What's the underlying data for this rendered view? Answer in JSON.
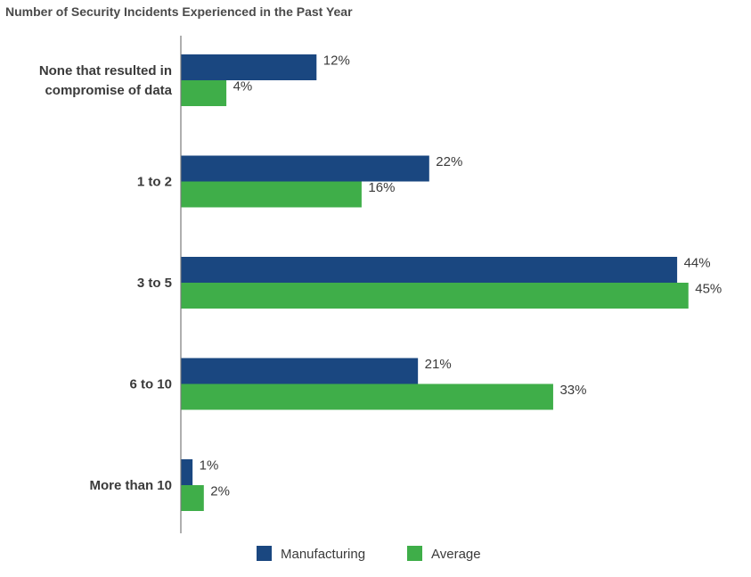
{
  "chart_data": {
    "type": "bar",
    "orientation": "horizontal",
    "title": "Number of Security Incidents Experienced in the Past Year",
    "categories": [
      [
        "None that resulted in",
        "compromise of data"
      ],
      [
        "1 to 2"
      ],
      [
        "3 to 5"
      ],
      [
        "6 to 10"
      ],
      [
        "More than 10"
      ]
    ],
    "series": [
      {
        "name": "Manufacturing",
        "color": "#1a4780",
        "values": [
          12,
          22,
          44,
          21,
          1
        ],
        "labels": [
          "12%",
          "22%",
          "44%",
          "21%",
          "1%"
        ]
      },
      {
        "name": "Average",
        "color": "#3fae49",
        "values": [
          4,
          16,
          45,
          33,
          2
        ],
        "labels": [
          "4%",
          "16%",
          "45%",
          "33%",
          "2%"
        ]
      }
    ],
    "xlim": [
      0,
      50
    ],
    "grid": false,
    "legend_position": "bottom"
  }
}
